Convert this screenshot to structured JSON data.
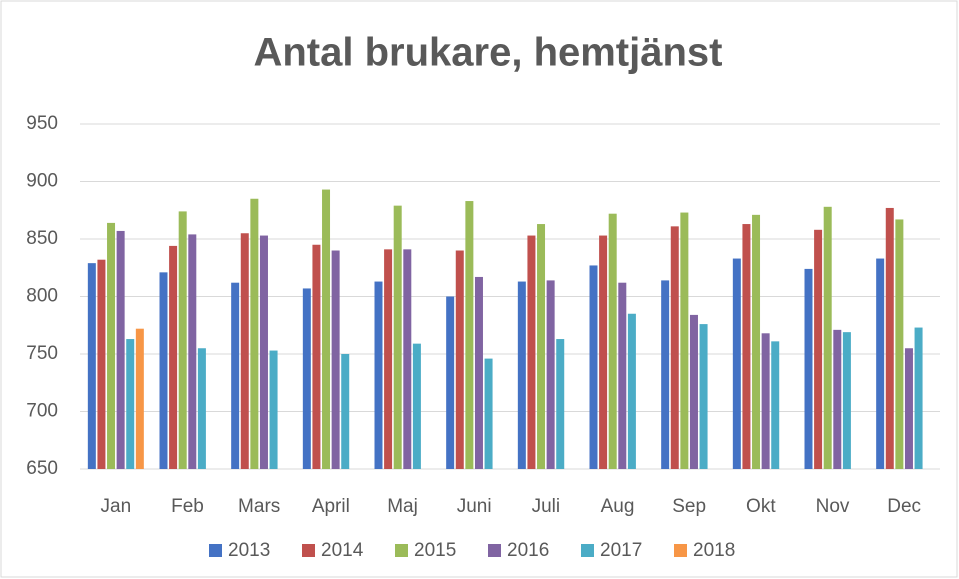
{
  "chart_data": {
    "type": "bar",
    "title": "Antal brukare, hemtjänst",
    "categories": [
      "Jan",
      "Feb",
      "Mars",
      "April",
      "Maj",
      "Juni",
      "Juli",
      "Aug",
      "Sep",
      "Okt",
      "Nov",
      "Dec"
    ],
    "series": [
      {
        "name": "2013",
        "color": "#4472c4",
        "values": [
          829,
          821,
          812,
          807,
          813,
          800,
          813,
          827,
          814,
          833,
          824,
          833
        ]
      },
      {
        "name": "2014",
        "color": "#c0504d",
        "values": [
          832,
          844,
          855,
          845,
          841,
          840,
          853,
          853,
          861,
          863,
          858,
          877
        ]
      },
      {
        "name": "2015",
        "color": "#9bbb59",
        "values": [
          864,
          874,
          885,
          893,
          879,
          883,
          863,
          872,
          873,
          871,
          878,
          867
        ]
      },
      {
        "name": "2016",
        "color": "#8064a2",
        "values": [
          857,
          854,
          853,
          840,
          841,
          817,
          814,
          812,
          784,
          768,
          771,
          755
        ]
      },
      {
        "name": "2017",
        "color": "#4bacc6",
        "values": [
          763,
          755,
          753,
          750,
          759,
          746,
          763,
          785,
          776,
          761,
          769,
          773
        ]
      },
      {
        "name": "2018",
        "color": "#f79646",
        "values": [
          772,
          null,
          null,
          null,
          null,
          null,
          null,
          null,
          null,
          null,
          null,
          null
        ]
      }
    ],
    "ylim": [
      650,
      950
    ],
    "yticks": [
      650,
      700,
      750,
      800,
      850,
      900,
      950
    ],
    "grid": true,
    "legend": "bottom"
  }
}
